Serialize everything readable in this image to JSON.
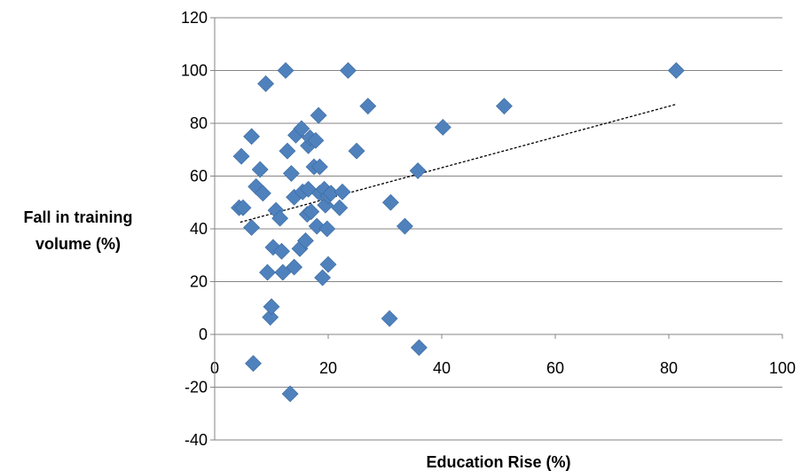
{
  "chart_data": {
    "type": "scatter",
    "title": "",
    "xlabel": "Education Rise (%)",
    "ylabel_lines": [
      "Fall in training",
      "volume (%)"
    ],
    "xlim": [
      0,
      100
    ],
    "ylim": [
      -40,
      120
    ],
    "x_ticks": [
      0,
      20,
      40,
      60,
      80,
      100
    ],
    "y_ticks": [
      -40,
      -20,
      0,
      20,
      40,
      60,
      80,
      100,
      120
    ],
    "grid": "horizontal",
    "legend": "none",
    "marker": "diamond",
    "marker_color": "#4F81BD",
    "trendline": {
      "type": "linear",
      "x": [
        4.5,
        81.3
      ],
      "y": [
        42.5,
        87.2
      ],
      "color": "#000000",
      "style": "dotted"
    },
    "series": [
      {
        "x": [
          4.3,
          4.7,
          5.0,
          6.5,
          6.8,
          6.5,
          7.3,
          8.0,
          8.5,
          9.0,
          9.3,
          9.8,
          10.0,
          10.3,
          10.8,
          11.5,
          11.8,
          12.0,
          12.5,
          12.8,
          13.3,
          13.5,
          14.0,
          14.0,
          14.3,
          15.0,
          15.3,
          15.5,
          16.0,
          16.3,
          16.5,
          16.5,
          16.8,
          17.0,
          17.5,
          17.8,
          18.0,
          18.3,
          18.5,
          18.5,
          19.0,
          19.3,
          19.5,
          19.8,
          20.0,
          20.0,
          20.5,
          22.0,
          22.5,
          23.5,
          25.0,
          27.0,
          30.8,
          31.0,
          33.5,
          35.8,
          36.0,
          40.2,
          51.0,
          81.3
        ],
        "y": [
          48,
          67.5,
          48,
          75,
          -11,
          40.5,
          56,
          62.5,
          53.5,
          95,
          23.5,
          6.5,
          10.5,
          33,
          47,
          44,
          31.5,
          23.5,
          100,
          69.5,
          -22.5,
          61,
          52,
          25.5,
          75.5,
          32.5,
          78,
          54,
          35.5,
          45.5,
          71.5,
          55,
          74.5,
          46.5,
          63.5,
          73.5,
          41,
          83,
          53.5,
          63.5,
          21.5,
          55,
          49,
          40,
          52.5,
          26.5,
          53.5,
          48,
          54,
          100,
          69.5,
          86.5,
          6,
          50,
          41,
          62,
          -5,
          78.5,
          86.5,
          100
        ]
      }
    ]
  }
}
